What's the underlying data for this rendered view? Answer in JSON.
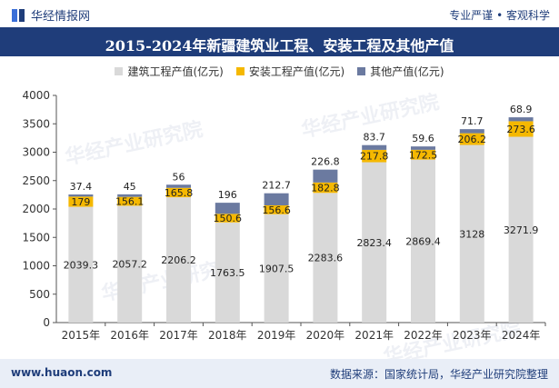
{
  "header": {
    "brand": "华经情报网",
    "tagline": "专业严谨 • 客观科学"
  },
  "footer": {
    "site": "www.huaon.com",
    "source": "数据来源：国家统计局，华经产业研究院整理"
  },
  "watermark": "华经产业研究院",
  "colors": {
    "header_bg": "#1f3d7a",
    "construction": "#d9d9d9",
    "installation": "#f5b800",
    "other": "#6b7aa0"
  },
  "chart_data": {
    "type": "bar",
    "stacked": true,
    "title": "2015-2024年新疆建筑业工程、安装工程及其他产值",
    "categories": [
      "2015年",
      "2016年",
      "2017年",
      "2018年",
      "2019年",
      "2020年",
      "2021年",
      "2022年",
      "2023年",
      "2024年"
    ],
    "series": [
      {
        "name": "建筑工程产值(亿元)",
        "values": [
          2039.3,
          2057.2,
          2206.2,
          1763.5,
          1907.5,
          2283.6,
          2823.4,
          2869.4,
          3128,
          3271.9
        ],
        "labels": [
          "2039.3",
          "2057.2",
          "2206.2",
          "1763.5",
          "1907.5",
          "2283.6",
          "2823.4",
          "2869.4",
          "3128",
          "3271.9"
        ]
      },
      {
        "name": "安装工程产值(亿元)",
        "values": [
          179,
          156.1,
          165.8,
          150.6,
          156.6,
          182.8,
          217.8,
          172.5,
          206.2,
          273.6
        ],
        "labels": [
          "179",
          "156.1",
          "165.8",
          "150.6",
          "156.6",
          "182.8",
          "217.8",
          "172.5",
          "206.2",
          "273.6"
        ]
      },
      {
        "name": "其他产值(亿元)",
        "values": [
          37.4,
          45,
          56,
          196,
          212.7,
          226.8,
          83.7,
          59.6,
          71.7,
          68.9
        ],
        "labels": [
          "37.4",
          "45",
          "56",
          "196",
          "212.7",
          "226.8",
          "83.7",
          "59.6",
          "71.7",
          "68.9"
        ]
      }
    ],
    "yticks": [
      "0",
      "500",
      "1000",
      "1500",
      "2000",
      "2500",
      "3000",
      "3500",
      "4000"
    ],
    "ylim": [
      0,
      4000
    ],
    "legend_position": "top-center",
    "grid": false
  }
}
